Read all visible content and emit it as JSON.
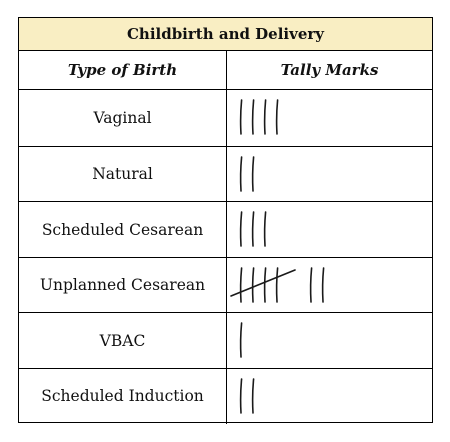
{
  "table": {
    "title": "Childbirth and Delivery",
    "col_headers": [
      "Type of Birth",
      "Tally Marks"
    ],
    "rows": [
      {
        "type": "Vaginal",
        "tally": 4
      },
      {
        "type": "Natural",
        "tally": 2
      },
      {
        "type": "Scheduled Cesarean",
        "tally": 3
      },
      {
        "type": "Unplanned Cesarean",
        "tally": 7
      },
      {
        "type": "VBAC",
        "tally": 1
      },
      {
        "type": "Scheduled Induction",
        "tally": 2
      }
    ]
  }
}
